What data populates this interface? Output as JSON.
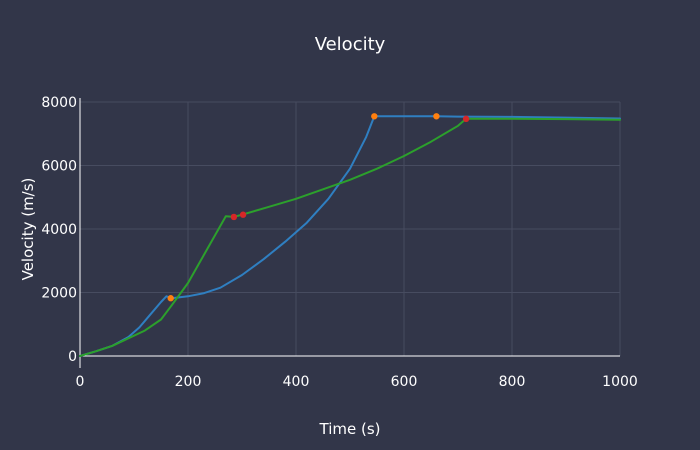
{
  "chart_data": {
    "type": "line",
    "title": "Velocity",
    "xlabel": "Time (s)",
    "ylabel": "Velocity (m/s)",
    "xlim": [
      0,
      1000
    ],
    "ylim": [
      0,
      8000
    ],
    "xticks": [
      0,
      200,
      400,
      600,
      800,
      1000
    ],
    "yticks": [
      0,
      2000,
      4000,
      6000,
      8000
    ],
    "grid": true,
    "legend": "none",
    "series": [
      {
        "color": "#2f7fc1",
        "points": [
          [
            0,
            0
          ],
          [
            30,
            150
          ],
          [
            60,
            320
          ],
          [
            90,
            600
          ],
          [
            110,
            900
          ],
          [
            130,
            1300
          ],
          [
            150,
            1700
          ],
          [
            160,
            1880
          ],
          [
            170,
            1820
          ],
          [
            200,
            1880
          ],
          [
            230,
            1980
          ],
          [
            260,
            2150
          ],
          [
            300,
            2550
          ],
          [
            340,
            3050
          ],
          [
            380,
            3600
          ],
          [
            420,
            4200
          ],
          [
            460,
            4950
          ],
          [
            500,
            5900
          ],
          [
            530,
            6900
          ],
          [
            545,
            7550
          ],
          [
            600,
            7550
          ],
          [
            660,
            7550
          ],
          [
            700,
            7540
          ],
          [
            800,
            7530
          ],
          [
            900,
            7510
          ],
          [
            1000,
            7480
          ]
        ]
      },
      {
        "color": "#2ca02c",
        "points": [
          [
            0,
            0
          ],
          [
            30,
            150
          ],
          [
            60,
            320
          ],
          [
            90,
            560
          ],
          [
            120,
            800
          ],
          [
            150,
            1150
          ],
          [
            170,
            1600
          ],
          [
            200,
            2300
          ],
          [
            230,
            3200
          ],
          [
            270,
            4400
          ],
          [
            285,
            4380
          ],
          [
            300,
            4450
          ],
          [
            350,
            4700
          ],
          [
            400,
            4950
          ],
          [
            450,
            5250
          ],
          [
            500,
            5550
          ],
          [
            550,
            5900
          ],
          [
            600,
            6300
          ],
          [
            650,
            6750
          ],
          [
            700,
            7250
          ],
          [
            715,
            7470
          ],
          [
            800,
            7470
          ],
          [
            900,
            7460
          ],
          [
            1000,
            7440
          ]
        ]
      }
    ],
    "markers": [
      {
        "x": 168,
        "y": 1820,
        "color": "#ff7f0e"
      },
      {
        "x": 545,
        "y": 7550,
        "color": "#ff7f0e"
      },
      {
        "x": 660,
        "y": 7550,
        "color": "#ff7f0e"
      },
      {
        "x": 285,
        "y": 4380,
        "color": "#d62728"
      },
      {
        "x": 302,
        "y": 4450,
        "color": "#d62728"
      },
      {
        "x": 715,
        "y": 7470,
        "color": "#d62728"
      }
    ]
  }
}
